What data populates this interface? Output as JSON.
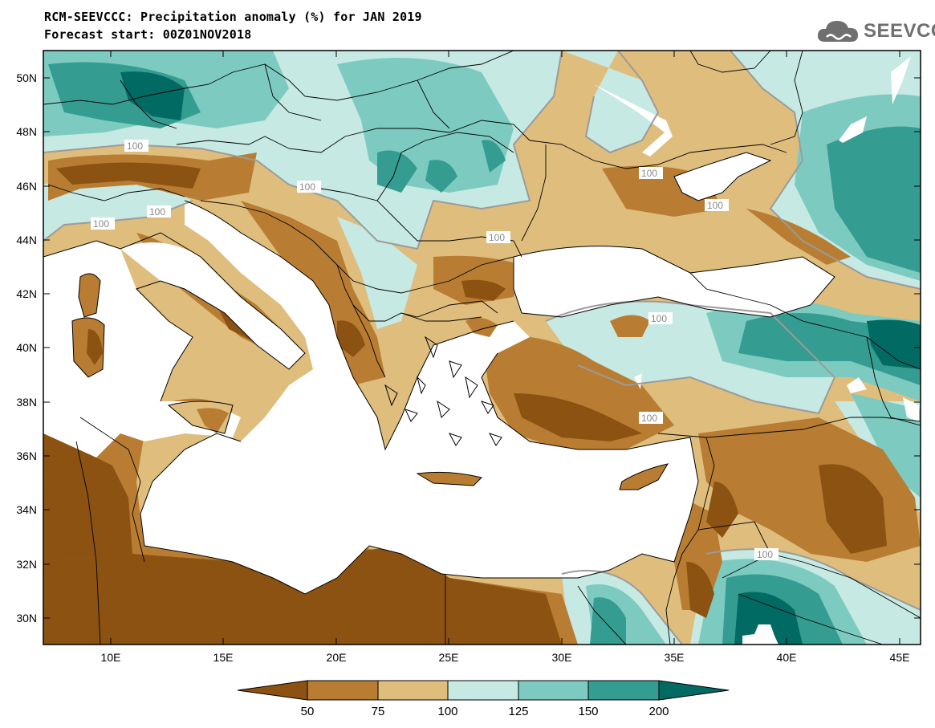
{
  "header": {
    "title_line1": "RCM-SEEVCCC: Precipitation anomaly (%) for JAN 2019",
    "title_line2": "Forecast start: 00Z01NOV2018"
  },
  "logo": {
    "text": "SEEVCCC",
    "icon": "cloud-icon"
  },
  "map": {
    "lat_labels": [
      "50N",
      "48N",
      "46N",
      "44N",
      "42N",
      "40N",
      "38N",
      "36N",
      "34N",
      "32N",
      "30N"
    ],
    "lon_labels": [
      "10E",
      "15E",
      "20E",
      "25E",
      "30E",
      "35E",
      "40E",
      "45E"
    ],
    "contour_labels": [
      "100",
      "100",
      "100",
      "100",
      "100",
      "100",
      "100",
      "100",
      "100",
      "100"
    ],
    "colors": {
      "below50": "#8b5212",
      "c50_75": "#b87d32",
      "c75_100": "#dfbd7d",
      "c100_125": "#c6e9e3",
      "c125_150": "#7dcbc0",
      "c150_200": "#359c92",
      "above200": "#016a62",
      "sea": "#ffffff",
      "contour": "#9b9b9b"
    }
  },
  "colorbar": {
    "ticks": [
      "50",
      "75",
      "100",
      "125",
      "150",
      "200"
    ],
    "colors": [
      "#8b5212",
      "#b87d32",
      "#dfbd7d",
      "#c6e9e3",
      "#7dcbc0",
      "#359c92",
      "#016a62"
    ]
  }
}
